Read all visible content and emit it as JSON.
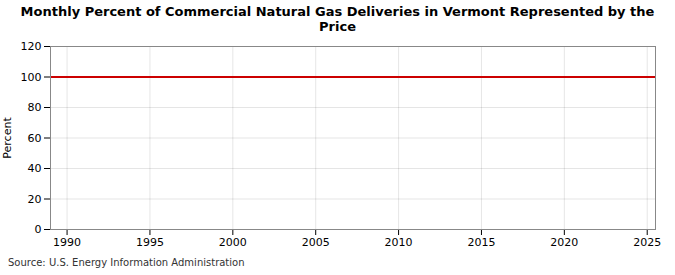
{
  "chart_data": {
    "type": "line",
    "title": "Monthly Percent of Commercial Natural Gas Deliveries in Vermont Represented by the Price",
    "ylabel": "Percent",
    "source": "Source: U.S. Energy Information Administration",
    "x": [
      1989.0,
      2025.5
    ],
    "values": [
      100,
      100
    ],
    "color": "#cc0000",
    "xlim": [
      1989.0,
      2025.5
    ],
    "xticks": [
      1990,
      1995,
      2000,
      2005,
      2010,
      2015,
      2020,
      2025
    ],
    "ylim": [
      0,
      120
    ],
    "yticks": [
      0,
      20,
      40,
      60,
      80,
      100,
      120
    ],
    "grid": true
  }
}
